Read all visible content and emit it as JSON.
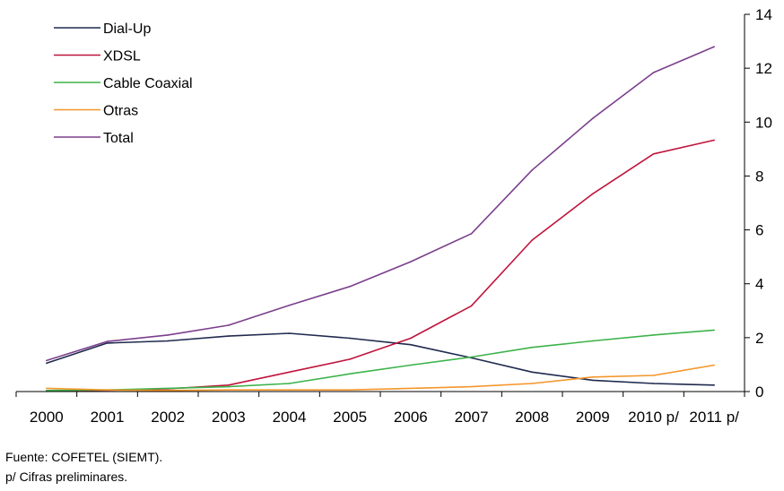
{
  "chart_data": {
    "type": "line",
    "title": "",
    "xlabel": "",
    "ylabel": "",
    "categories": [
      "2000",
      "2001",
      "2002",
      "2003",
      "2004",
      "2005",
      "2006",
      "2007",
      "2008",
      "2009",
      "2010 p/",
      "2011 p/"
    ],
    "ylim": [
      0,
      14
    ],
    "yticks": [
      0,
      2,
      4,
      6,
      8,
      10,
      12,
      14
    ],
    "y_axis_side": "right",
    "grid": false,
    "legend_position": "top-left",
    "series": [
      {
        "name": "Dial-Up",
        "color": "#1f2a4e",
        "values": [
          1.05,
          1.8,
          1.88,
          2.06,
          2.16,
          1.98,
          1.74,
          1.25,
          0.72,
          0.42,
          0.3,
          0.24
        ]
      },
      {
        "name": "XDSL",
        "color": "#c0143c",
        "values": [
          0.02,
          0.05,
          0.1,
          0.24,
          0.72,
          1.2,
          1.98,
          3.18,
          5.62,
          7.34,
          8.82,
          9.33
        ]
      },
      {
        "name": "Cable Coaxial",
        "color": "#3cb34a",
        "values": [
          0.04,
          0.06,
          0.12,
          0.18,
          0.3,
          0.66,
          0.98,
          1.28,
          1.64,
          1.88,
          2.1,
          2.28
        ]
      },
      {
        "name": "Otras",
        "color": "#f4962a",
        "values": [
          0.12,
          0.06,
          0.04,
          0.06,
          0.06,
          0.06,
          0.12,
          0.18,
          0.3,
          0.54,
          0.6,
          0.98
        ]
      },
      {
        "name": "Total",
        "color": "#7b3f8c",
        "values": [
          1.15,
          1.86,
          2.1,
          2.46,
          3.2,
          3.9,
          4.82,
          5.86,
          8.22,
          10.14,
          11.84,
          12.8
        ]
      }
    ]
  },
  "footnotes": {
    "source": "Fuente: COFETEL (SIEMT).",
    "note": "p/ Cifras preliminares."
  }
}
